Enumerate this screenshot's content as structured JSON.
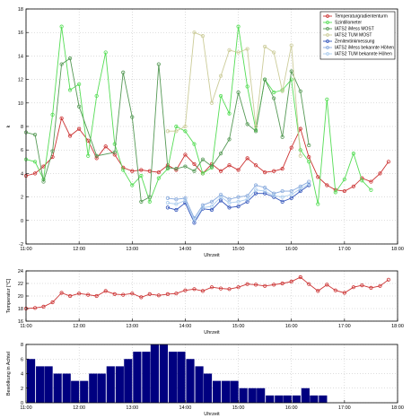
{
  "chart_data": [
    {
      "type": "line",
      "xlabel": "Uhrzeit",
      "ylabel": "k",
      "xlim": [
        11.0,
        18.0
      ],
      "ylim": [
        -2,
        18
      ],
      "xticks": [
        11,
        12,
        13,
        14,
        15,
        16,
        17,
        18
      ],
      "xticklabels": [
        "11:00",
        "12:00",
        "13:00",
        "14:00",
        "15:00",
        "16:00",
        "17:00",
        "18:00"
      ],
      "yticks": [
        -2,
        0,
        2,
        4,
        6,
        8,
        10,
        12,
        14,
        16,
        18
      ],
      "grid": true,
      "legend_position": "top-right",
      "series": [
        {
          "name": "Temperaturgradiententurm",
          "color": "#cc3333",
          "marker": "circle",
          "x": [
            11.0,
            11.17,
            11.33,
            11.5,
            11.67,
            11.83,
            12.0,
            12.17,
            12.33,
            12.5,
            12.67,
            12.83,
            13.0,
            13.17,
            13.33,
            13.5,
            13.67,
            13.83,
            14.0,
            14.17,
            14.33,
            14.5,
            14.67,
            14.83,
            15.0,
            15.17,
            15.33,
            15.5,
            15.67,
            15.83,
            16.0,
            16.17,
            16.33,
            16.5,
            16.67,
            16.83,
            17.0,
            17.17,
            17.33,
            17.5,
            17.67,
            17.83
          ],
          "y": [
            3.8,
            4.0,
            4.6,
            5.4,
            8.7,
            7.2,
            7.8,
            6.8,
            5.3,
            6.3,
            5.6,
            4.5,
            4.2,
            4.3,
            4.2,
            4.1,
            4.7,
            4.3,
            5.6,
            4.8,
            4.0,
            4.8,
            4.2,
            4.7,
            4.3,
            5.3,
            4.7,
            4.1,
            4.2,
            4.4,
            6.2,
            7.8,
            5.4,
            3.7,
            3.0,
            2.6,
            2.5,
            2.9,
            3.6,
            3.3,
            4.0,
            5.0
          ]
        },
        {
          "name": "Szintillometer",
          "color": "#55dd55",
          "marker": "circle",
          "x": [
            11.0,
            11.17,
            11.33,
            11.5,
            11.67,
            11.83,
            12.0,
            12.17,
            12.33,
            12.5,
            12.67,
            12.83,
            13.0,
            13.17,
            13.33,
            13.5,
            13.67,
            13.83,
            14.0,
            14.17,
            14.33,
            14.5,
            14.67,
            14.83,
            15.0,
            15.17,
            15.33,
            15.5,
            15.67,
            15.83,
            16.0,
            16.17,
            16.33,
            16.5,
            16.67,
            16.83,
            17.0,
            17.17,
            17.33,
            17.5
          ],
          "y": [
            5.2,
            5.0,
            3.5,
            9.0,
            16.5,
            11.1,
            11.6,
            5.5,
            10.6,
            14.3,
            6.5,
            4.3,
            3.0,
            3.8,
            1.6,
            3.6,
            4.4,
            8.0,
            7.6,
            6.5,
            4.0,
            4.5,
            10.6,
            9.1,
            16.5,
            11.4,
            7.7,
            12.0,
            10.9,
            11.1,
            12.0,
            6.0,
            5.0,
            1.4,
            10.3,
            2.4,
            3.5,
            5.7,
            3.4,
            2.6
          ]
        },
        {
          "name": "IATS2 iMess MOST",
          "color": "#559955",
          "marker": "circle",
          "x": [
            11.0,
            11.17,
            11.33,
            11.5,
            11.67,
            11.83,
            12.0,
            12.33,
            12.67,
            12.83,
            13.0,
            13.17,
            13.33,
            13.5,
            13.67,
            13.83,
            14.0,
            14.17,
            14.33,
            14.5,
            14.67,
            14.83,
            15.0,
            15.17,
            15.33,
            15.5,
            15.67,
            15.83,
            16.0,
            16.17,
            16.33
          ],
          "y": [
            7.5,
            7.3,
            3.3,
            5.9,
            13.3,
            13.8,
            9.7,
            5.5,
            5.8,
            12.6,
            8.8,
            1.6,
            2.0,
            13.3,
            4.5,
            4.4,
            4.6,
            4.2,
            5.2,
            4.6,
            5.7,
            6.9,
            10.9,
            8.2,
            7.6,
            12.0,
            10.4,
            7.1,
            12.7,
            11.0,
            6.4
          ]
        },
        {
          "name": "IATS2 TUM MOST",
          "color": "#cccc99",
          "marker": "circle",
          "x": [
            13.67,
            13.83,
            14.0,
            14.17,
            14.33,
            14.5,
            14.67,
            14.83,
            15.0,
            15.17,
            15.33,
            15.5,
            15.67,
            15.83,
            16.0,
            16.17
          ],
          "y": [
            7.6,
            7.6,
            8.0,
            16.0,
            15.7,
            10.0,
            12.3,
            14.5,
            14.3,
            14.6,
            8.0,
            14.8,
            14.3,
            11.0,
            14.9,
            5.5
          ]
        },
        {
          "name": "Zenitextinkmessung",
          "color": "#3355bb",
          "marker": "circle",
          "x": [
            13.67,
            13.83,
            14.0,
            14.17,
            14.33,
            14.5,
            14.67,
            14.83,
            15.0,
            15.17,
            15.33,
            15.5,
            15.67,
            15.83,
            16.0,
            16.17,
            16.33
          ],
          "y": [
            1.1,
            0.9,
            1.5,
            -0.2,
            1.0,
            0.9,
            1.7,
            1.1,
            1.2,
            1.6,
            2.3,
            2.3,
            2.0,
            1.6,
            1.9,
            2.5,
            3.0
          ]
        },
        {
          "name": "IATS2 iMess bekannte Höhen",
          "color": "#88aadd",
          "marker": "circle",
          "x": [
            13.67,
            13.83,
            14.0,
            14.17,
            14.33,
            14.5,
            14.67,
            14.83,
            15.0,
            15.17,
            15.33,
            15.5,
            15.67,
            15.83,
            16.0,
            16.17,
            16.33
          ],
          "y": [
            1.9,
            1.8,
            1.9,
            0.2,
            1.3,
            1.6,
            2.2,
            1.8,
            2.0,
            2.1,
            3.0,
            2.8,
            2.3,
            2.5,
            2.5,
            2.9,
            3.3
          ]
        },
        {
          "name": "IATS2 TUM bekannte Höhen",
          "color": "#aaccee",
          "marker": "circle",
          "x": [
            13.67,
            13.83,
            14.0,
            14.17,
            14.33,
            14.5,
            14.67,
            14.83,
            15.0,
            15.17,
            15.33,
            15.5,
            15.67,
            15.83,
            16.0,
            16.17,
            16.33
          ],
          "y": [
            1.5,
            1.4,
            1.7,
            0.0,
            1.1,
            1.2,
            2.0,
            1.5,
            1.6,
            1.8,
            2.6,
            2.5,
            2.1,
            2.0,
            2.2,
            2.7,
            3.1
          ]
        }
      ]
    },
    {
      "type": "line",
      "xlabel": "Uhrzeit",
      "ylabel": "Temperatur [°C]",
      "xlim": [
        11.0,
        18.0
      ],
      "ylim": [
        16,
        24
      ],
      "xticks": [
        11,
        12,
        13,
        14,
        15,
        16,
        17,
        18
      ],
      "xticklabels": [
        "11:00",
        "12:00",
        "13:00",
        "14:00",
        "15:00",
        "16:00",
        "17:00",
        "18:00"
      ],
      "yticks": [
        16,
        18,
        20,
        22,
        24
      ],
      "grid": true,
      "series": [
        {
          "name": "",
          "color": "#cc3333",
          "marker": "circle",
          "x": [
            11.0,
            11.17,
            11.33,
            11.5,
            11.67,
            11.83,
            12.0,
            12.17,
            12.33,
            12.5,
            12.67,
            12.83,
            13.0,
            13.17,
            13.33,
            13.5,
            13.67,
            13.83,
            14.0,
            14.17,
            14.33,
            14.5,
            14.67,
            14.83,
            15.0,
            15.17,
            15.33,
            15.5,
            15.67,
            15.83,
            16.0,
            16.17,
            16.33,
            16.5,
            16.67,
            16.83,
            17.0,
            17.17,
            17.33,
            17.5,
            17.67,
            17.83
          ],
          "y": [
            18.0,
            18.1,
            18.3,
            19.0,
            20.5,
            20.0,
            20.4,
            20.2,
            20.0,
            20.8,
            20.3,
            20.2,
            20.4,
            19.8,
            20.3,
            20.1,
            20.3,
            20.4,
            20.9,
            21.1,
            20.8,
            21.4,
            21.2,
            21.1,
            21.4,
            21.9,
            21.8,
            21.6,
            21.8,
            22.0,
            22.3,
            23.0,
            21.9,
            20.8,
            21.8,
            20.9,
            20.5,
            21.4,
            21.7,
            21.3,
            21.6,
            22.6
          ]
        }
      ]
    },
    {
      "type": "bar",
      "xlabel": "Uhrzeit",
      "ylabel": "Bewölkung in Achtel",
      "xlim": [
        11.0,
        18.0
      ],
      "ylim": [
        0,
        8
      ],
      "xticks": [
        11,
        12,
        13,
        14,
        15,
        16,
        17,
        18
      ],
      "xticklabels": [
        "11:00",
        "12:00",
        "13:00",
        "14:00",
        "15:00",
        "16:00",
        "17:00",
        "18:00"
      ],
      "yticks": [
        0,
        2,
        4,
        6,
        8
      ],
      "grid": true,
      "color": "#000080",
      "x": [
        11.0,
        11.17,
        11.33,
        11.5,
        11.67,
        11.83,
        12.0,
        12.17,
        12.33,
        12.5,
        12.67,
        12.83,
        13.0,
        13.17,
        13.33,
        13.5,
        13.67,
        13.83,
        14.0,
        14.17,
        14.33,
        14.5,
        14.67,
        14.83,
        15.0,
        15.17,
        15.33,
        15.5,
        15.67,
        15.83,
        16.0,
        16.17,
        16.33,
        16.5
      ],
      "values": [
        6,
        5,
        5,
        4,
        4,
        3,
        3,
        4,
        4,
        5,
        5,
        6,
        7,
        7,
        8,
        8,
        7,
        7,
        6,
        5,
        4,
        3,
        3,
        3,
        2,
        2,
        2,
        1,
        1,
        1,
        1,
        2,
        1,
        1
      ]
    }
  ]
}
